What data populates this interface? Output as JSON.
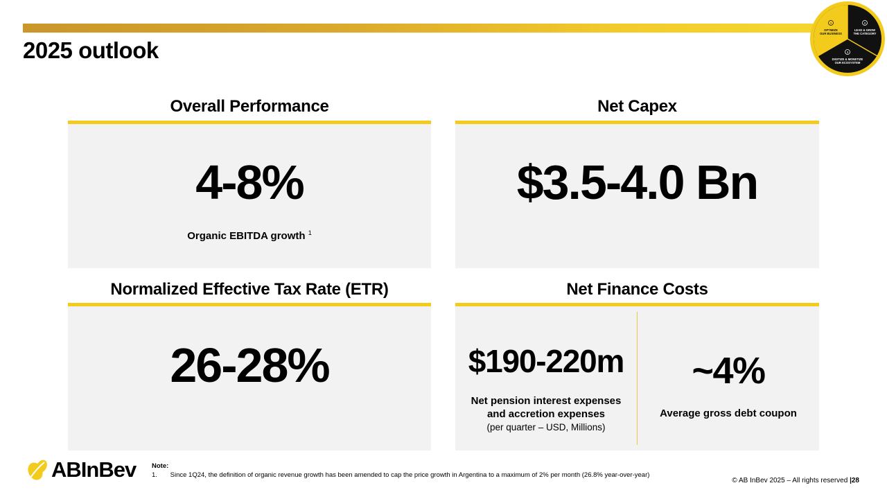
{
  "page": {
    "title": "2025 outlook",
    "accent_color": "#f2cb1d",
    "panel_color": "#f2f2f2"
  },
  "badge": {
    "segments": [
      {
        "number": "1",
        "label_line1": "OPTIMIZE",
        "label_line2": "OUR BUSINESS"
      },
      {
        "number": "2",
        "label_line1": "LEAD & GROW",
        "label_line2": "THE CATEGORY"
      },
      {
        "number": "3",
        "label_line1": "DIGITIZE & MONETIZE",
        "label_line2": "OUR ECOSYSTEM"
      }
    ]
  },
  "sections": {
    "overall": {
      "title": "Overall Performance",
      "value": "4-8%",
      "caption": "Organic EBITDA growth",
      "footnote_ref": "1"
    },
    "capex": {
      "title": "Net Capex",
      "value": "$3.5-4.0 Bn"
    },
    "etr": {
      "title": "Normalized Effective Tax Rate (ETR)",
      "value": "26-28%"
    },
    "finance": {
      "title": "Net Finance Costs",
      "left": {
        "value": "$190-220m",
        "caption_line1": "Net pension interest expenses",
        "caption_line2": "and accretion expenses",
        "sub_caption": "(per quarter – USD, Millions)"
      },
      "right": {
        "value": "~4%",
        "caption": "Average gross debt coupon"
      }
    }
  },
  "footer": {
    "logo_text": "ABInBev",
    "note_heading": "Note:",
    "note_number": "1.",
    "note_text": "Since 1Q24, the definition of organic revenue growth has been amended to cap the price growth in Argentina to a maximum of 2% per month (26.8% year-over-year)",
    "copyright": "© AB InBev 2025 – All rights reserved",
    "page_number": "28"
  }
}
